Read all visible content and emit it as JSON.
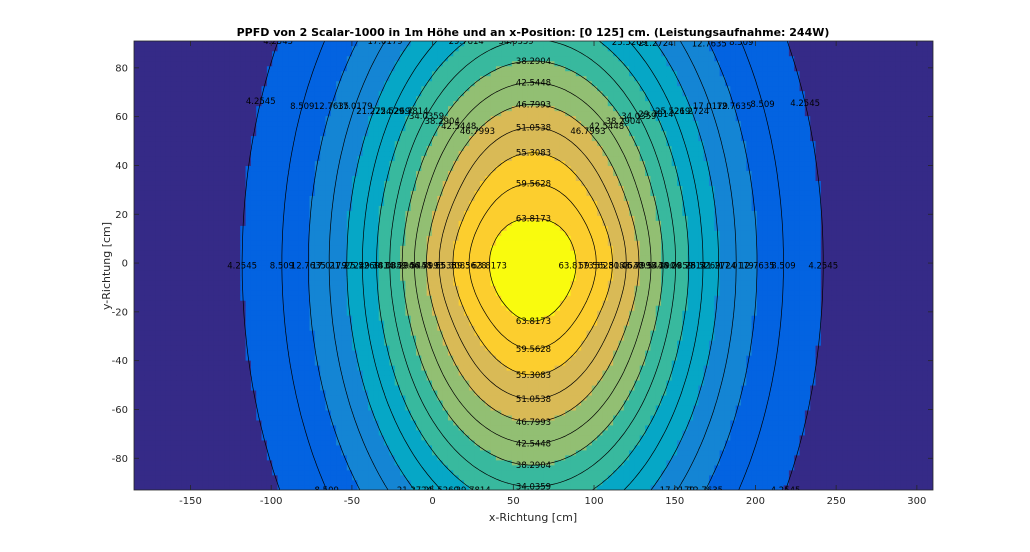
{
  "chart_data": {
    "type": "contour",
    "title": "PPFD von 2 Scalar-1000 in 1m Höhe und an x-Position: [0  125] cm. (Leistungsaufnahme: 244W)",
    "xlabel": "x-Richtung [cm]",
    "ylabel": "y-Richtung [cm]",
    "xlim": [
      -185,
      310
    ],
    "ylim": [
      -93,
      91
    ],
    "xticks": [
      -150,
      -100,
      -50,
      0,
      50,
      100,
      150,
      200,
      250,
      300
    ],
    "yticks": [
      -80,
      -60,
      -40,
      -20,
      0,
      20,
      40,
      60,
      80
    ],
    "lamp_x_positions": [
      0,
      125
    ],
    "power_W": 244,
    "contour_levels": [
      4.2545,
      8.509,
      12.7635,
      17.0179,
      21.2724,
      25.5269,
      29.7814,
      34.0359,
      38.2904,
      42.5448,
      46.7993,
      51.0538,
      55.3083,
      59.5628,
      63.8173
    ],
    "colormap": [
      "#352a87",
      "#0363e1",
      "#1485d4",
      "#06a7c6",
      "#38b99e",
      "#92bf73",
      "#d9ba56",
      "#fcce2e",
      "#f9fb0e"
    ],
    "grid": false,
    "colorbar": false
  }
}
